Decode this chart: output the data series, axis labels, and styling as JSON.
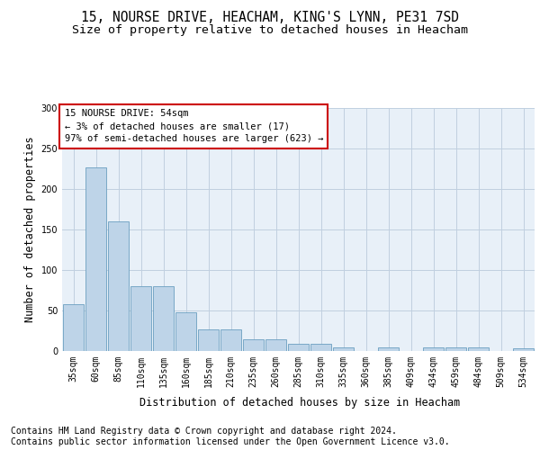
{
  "title_line1": "15, NOURSE DRIVE, HEACHAM, KING'S LYNN, PE31 7SD",
  "title_line2": "Size of property relative to detached houses in Heacham",
  "xlabel": "Distribution of detached houses by size in Heacham",
  "ylabel": "Number of detached properties",
  "categories": [
    "35sqm",
    "60sqm",
    "85sqm",
    "110sqm",
    "135sqm",
    "160sqm",
    "185sqm",
    "210sqm",
    "235sqm",
    "260sqm",
    "285sqm",
    "310sqm",
    "335sqm",
    "360sqm",
    "385sqm",
    "409sqm",
    "434sqm",
    "459sqm",
    "484sqm",
    "509sqm",
    "534sqm"
  ],
  "values": [
    58,
    227,
    160,
    80,
    80,
    48,
    27,
    27,
    15,
    15,
    9,
    9,
    4,
    0,
    4,
    0,
    4,
    4,
    4,
    0,
    3
  ],
  "bar_color": "#bed4e8",
  "bar_edge_color": "#6b9fc0",
  "annotation_text": "15 NOURSE DRIVE: 54sqm\n← 3% of detached houses are smaller (17)\n97% of semi-detached houses are larger (623) →",
  "annotation_box_color": "#ffffff",
  "annotation_box_edge": "#cc0000",
  "ylim": [
    0,
    300
  ],
  "yticks": [
    0,
    50,
    100,
    150,
    200,
    250,
    300
  ],
  "footer_line1": "Contains HM Land Registry data © Crown copyright and database right 2024.",
  "footer_line2": "Contains public sector information licensed under the Open Government Licence v3.0.",
  "bg_color": "#ffffff",
  "plot_bg_color": "#e8f0f8",
  "grid_color": "#c0cfe0",
  "title_fontsize": 10.5,
  "subtitle_fontsize": 9.5,
  "ylabel_fontsize": 8.5,
  "xlabel_fontsize": 8.5,
  "tick_fontsize": 7,
  "annotation_fontsize": 7.5,
  "footer_fontsize": 7
}
